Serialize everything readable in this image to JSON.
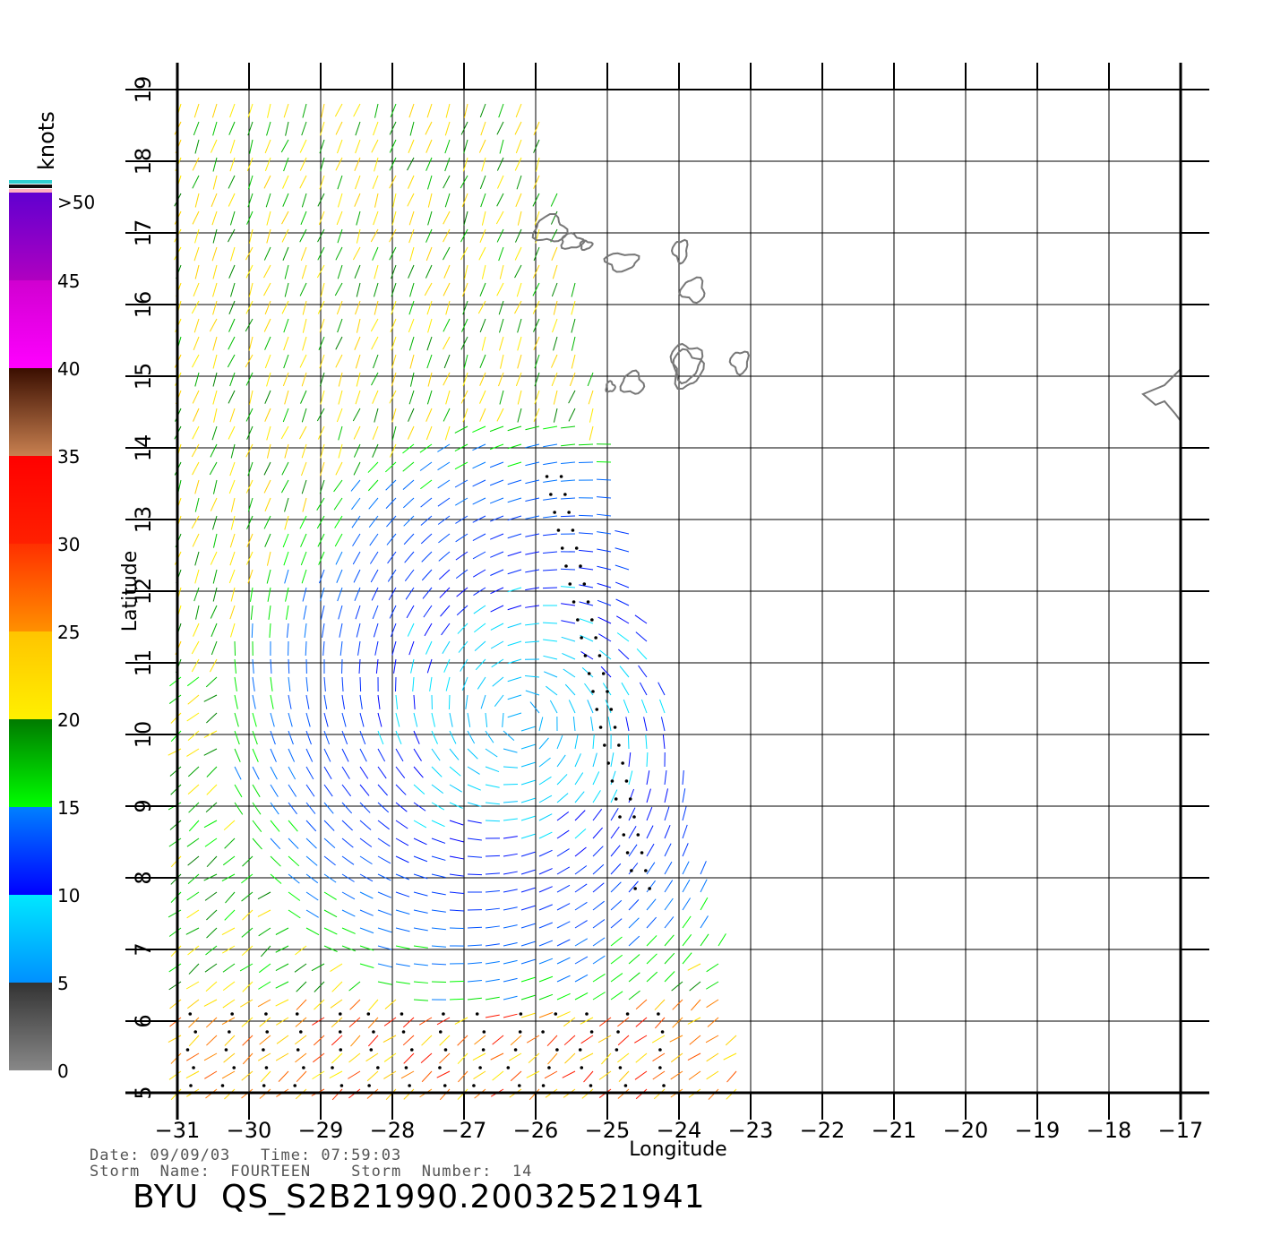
{
  "map": {
    "lon_ticks": [
      "−31",
      "−30",
      "−29",
      "−28",
      "−27",
      "−26",
      "−25",
      "−24",
      "−23",
      "−22",
      "−21",
      "−20",
      "−19",
      "−18",
      "−17"
    ],
    "lat_ticks": [
      "5",
      "6",
      "7",
      "8",
      "9",
      "10",
      "11",
      "12",
      "13",
      "14",
      "15",
      "16",
      "17",
      "18",
      "19"
    ],
    "lon_range": [
      -31,
      -17
    ],
    "lat_range": [
      5,
      19
    ],
    "x_label": "Longitude",
    "y_label": "Latitude",
    "grid": true,
    "swath_edges": {
      "west_lon": [
        -31,
        -31
      ],
      "east_lon_at_lat19": -26,
      "east_lon_at_lat5": -23
    },
    "coastline_color": "#777777",
    "islands": "Cape Verde"
  },
  "legend": {
    "title": "knots",
    "labels": [
      "0",
      "5",
      "10",
      "15",
      "20",
      "25",
      "30",
      "35",
      "40",
      "45",
      ">50"
    ],
    "bins": [
      {
        "from": 0,
        "to": 5,
        "top": "#333333",
        "bottom": "#888888"
      },
      {
        "from": 5,
        "to": 10,
        "top": "#00e8ff",
        "bottom": "#0090ff"
      },
      {
        "from": 10,
        "to": 15,
        "top": "#0080ff",
        "bottom": "#0000ff"
      },
      {
        "from": 15,
        "to": 20,
        "top": "#007a00",
        "bottom": "#00ff00"
      },
      {
        "from": 20,
        "to": 25,
        "top": "#ffc400",
        "bottom": "#fff000"
      },
      {
        "from": 25,
        "to": 30,
        "top": "#ff3000",
        "bottom": "#ff9000"
      },
      {
        "from": 30,
        "to": 35,
        "top": "#ff0000",
        "bottom": "#ff2000"
      },
      {
        "from": 35,
        "to": 40,
        "top": "#3a0e00",
        "bottom": "#c88050"
      },
      {
        "from": 40,
        "to": 45,
        "top": "#d000d0",
        "bottom": "#ff00ff"
      },
      {
        "from": 45,
        "to": 50,
        "top": "#6000d0",
        "bottom": "#b000c0"
      }
    ],
    "cap_colors": [
      "#30d0d0",
      "#101010",
      "#ffb0c0"
    ]
  },
  "info": {
    "date_line": "Date: 09/09/03   Time: 07:59:03",
    "storm_line": "Storm  Name:  FOURTEEN    Storm  Number:  14",
    "file_title": "BYU  QS_S2B21990.20032521941"
  }
}
